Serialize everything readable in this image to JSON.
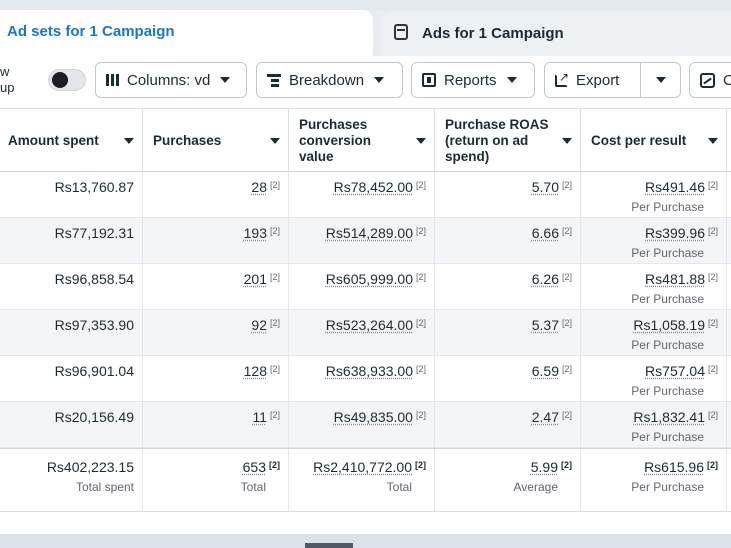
{
  "tabs": {
    "active": "Ad sets for 1 Campaign",
    "inactive": "Ads for 1 Campaign"
  },
  "toolbar": {
    "view_group_line1": "w",
    "view_group_line2": "up",
    "columns": "Columns: vd",
    "breakdown": "Breakdown",
    "reports": "Reports",
    "export": "Export",
    "chart_partial": "C"
  },
  "table": {
    "headers": [
      "Amount spent",
      "Purchases",
      "Purchases\nconversion\nvalue",
      "Purchase ROAS\n(return on ad\nspend)",
      "Cost per result"
    ],
    "note_marker": "[2]",
    "rows": [
      {
        "amount": "Rs13,760.87",
        "purchases": "28",
        "conv_value": "Rs78,452.00",
        "roas": "5.70",
        "cpr": "Rs491.46",
        "cpr_label": "Per Purchase"
      },
      {
        "amount": "Rs77,192.31",
        "purchases": "193",
        "conv_value": "Rs514,289.00",
        "roas": "6.66",
        "cpr": "Rs399.96",
        "cpr_label": "Per Purchase"
      },
      {
        "amount": "Rs96,858.54",
        "purchases": "201",
        "conv_value": "Rs605,999.00",
        "roas": "6.26",
        "cpr": "Rs481.88",
        "cpr_label": "Per Purchase"
      },
      {
        "amount": "Rs97,353.90",
        "purchases": "92",
        "conv_value": "Rs523,264.00",
        "roas": "5.37",
        "cpr": "Rs1,058.19",
        "cpr_label": "Per Purchase"
      },
      {
        "amount": "Rs96,901.04",
        "purchases": "128",
        "conv_value": "Rs638,933.00",
        "roas": "6.59",
        "cpr": "Rs757.04",
        "cpr_label": "Per Purchase"
      },
      {
        "amount": "Rs20,156.49",
        "purchases": "11",
        "conv_value": "Rs49,835.00",
        "roas": "2.47",
        "cpr": "Rs1,832.41",
        "cpr_label": "Per Purchase"
      }
    ],
    "totals": {
      "amount": "Rs402,223.15",
      "amount_label": "Total spent",
      "purchases": "653",
      "purchases_label": "Total",
      "conv_value": "Rs2,410,772.00",
      "conv_value_label": "Total",
      "roas": "5.99",
      "roas_label": "Average",
      "cpr": "Rs615.96",
      "cpr_label": "Per Purchase"
    }
  }
}
